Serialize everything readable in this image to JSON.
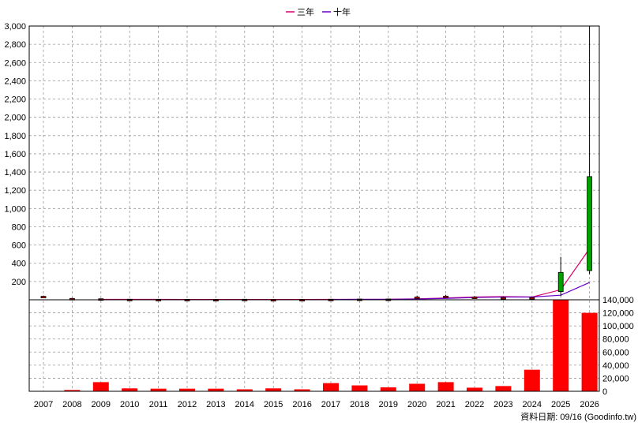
{
  "legend": [
    {
      "label": "三年",
      "color": "#d6006a"
    },
    {
      "label": "十年",
      "color": "#6a00c8"
    }
  ],
  "footer": "資料日期: 09/16 (Goodinfo.tw)",
  "chart_data": [
    {
      "type": "candlestick",
      "title": "",
      "x_categories": [
        "2007",
        "2008",
        "2009",
        "2010",
        "2011",
        "2012",
        "2013",
        "2014",
        "2015",
        "2016",
        "2017",
        "2018",
        "2019",
        "2020",
        "2021",
        "2022",
        "2023",
        "2024",
        "2025",
        "2026"
      ],
      "ylim": [
        0,
        3000
      ],
      "yticks": [
        200,
        400,
        600,
        800,
        1000,
        1200,
        1400,
        1600,
        1800,
        2000,
        2200,
        2400,
        2600,
        2800,
        3000
      ],
      "ytick_labels": [
        "200",
        "400",
        "600",
        "800",
        "1,000",
        "1,200",
        "1,400",
        "1,600",
        "1,800",
        "2,000",
        "2,200",
        "2,400",
        "2,600",
        "2,800",
        "3,000"
      ],
      "candles": [
        {
          "x": "2007",
          "open": 35,
          "high": 45,
          "low": 28,
          "close": 38
        },
        {
          "x": "2008",
          "open": 10,
          "high": 20,
          "low": 0,
          "close": 15
        },
        {
          "x": "2009",
          "open": 10,
          "high": 14,
          "low": 6,
          "close": 11
        },
        {
          "x": "2010",
          "open": 5,
          "high": 8,
          "low": 3,
          "close": 6
        },
        {
          "x": "2011",
          "open": 4,
          "high": 6,
          "low": 2,
          "close": 5
        },
        {
          "x": "2012",
          "open": 4,
          "high": 6,
          "low": 2,
          "close": 5
        },
        {
          "x": "2013",
          "open": 3,
          "high": 5,
          "low": 1,
          "close": 4
        },
        {
          "x": "2014",
          "open": 5,
          "high": 8,
          "low": 2,
          "close": 6
        },
        {
          "x": "2015",
          "open": 2,
          "high": 4,
          "low": 1,
          "close": 3
        },
        {
          "x": "2016",
          "open": 3,
          "high": 6,
          "low": 1,
          "close": 4
        },
        {
          "x": "2017",
          "open": 5,
          "high": 8,
          "low": 3,
          "close": 6
        },
        {
          "x": "2018",
          "open": 7,
          "high": 10,
          "low": 4,
          "close": 8
        },
        {
          "x": "2019",
          "open": 7,
          "high": 10,
          "low": 4,
          "close": 8
        },
        {
          "x": "2020",
          "open": 15,
          "high": 45,
          "low": 10,
          "close": 30
        },
        {
          "x": "2021",
          "open": 35,
          "high": 55,
          "low": 25,
          "close": 40
        },
        {
          "x": "2022",
          "open": 20,
          "high": 40,
          "low": 15,
          "close": 30
        },
        {
          "x": "2023",
          "open": 18,
          "high": 32,
          "low": 14,
          "close": 25
        },
        {
          "x": "2024",
          "open": 20,
          "high": 30,
          "low": 12,
          "close": 25
        },
        {
          "x": "2025",
          "open": 300,
          "high": 470,
          "low": 40,
          "close": 90
        },
        {
          "x": "2026",
          "open": 1350,
          "high": 3000,
          "low": 280,
          "close": 320
        }
      ],
      "series": [
        {
          "name": "三年",
          "values": [
            null,
            null,
            5,
            4,
            4,
            3,
            3,
            3,
            3,
            3,
            4,
            5,
            6,
            10,
            20,
            30,
            35,
            30,
            110,
            560
          ]
        },
        {
          "name": "十年",
          "values": [
            null,
            null,
            null,
            null,
            null,
            null,
            null,
            null,
            null,
            null,
            3,
            4,
            5,
            8,
            15,
            25,
            30,
            30,
            50,
            190
          ]
        }
      ]
    },
    {
      "type": "bar",
      "title": "",
      "x_categories": [
        "2007",
        "2008",
        "2009",
        "2010",
        "2011",
        "2012",
        "2013",
        "2014",
        "2015",
        "2016",
        "2017",
        "2018",
        "2019",
        "2020",
        "2021",
        "2022",
        "2023",
        "2024",
        "2025",
        "2026"
      ],
      "values": [
        0,
        2000,
        14000,
        4500,
        4000,
        4000,
        4000,
        3000,
        4500,
        3000,
        12500,
        9000,
        6000,
        11500,
        14000,
        5500,
        8000,
        33000,
        140000,
        120000
      ],
      "ylim": [
        0,
        140000
      ],
      "yticks": [
        0,
        20000,
        40000,
        60000,
        80000,
        100000,
        120000,
        140000
      ],
      "ytick_labels": [
        "0",
        "20,000",
        "40,000",
        "60,000",
        "80,000",
        "100,000",
        "120,000",
        "140,000"
      ],
      "color": "#ff0000"
    }
  ]
}
